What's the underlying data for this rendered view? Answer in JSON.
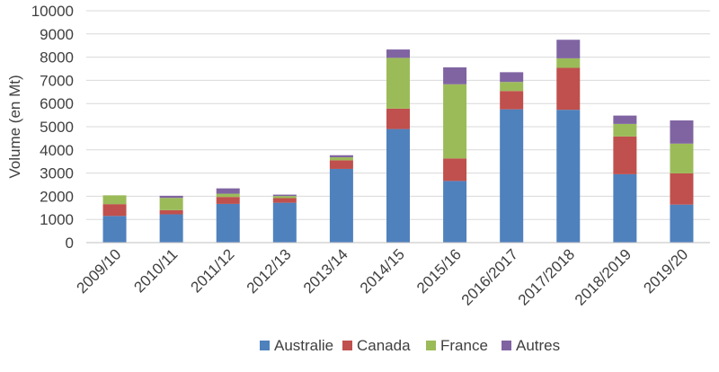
{
  "chart_data": {
    "type": "bar",
    "stacked": true,
    "title": "",
    "xlabel": "",
    "ylabel": "Volume (en Mt)",
    "ylim": [
      0,
      10000
    ],
    "yticks": [
      "0",
      "1000",
      "2000",
      "3000",
      "4000",
      "5000",
      "6000",
      "7000",
      "8000",
      "9000",
      "10000"
    ],
    "grid": true,
    "legend_position": "bottom",
    "categories": [
      "2009/10",
      "2010/11",
      "2011/12",
      "2012/13",
      "2013/14",
      "2014/15",
      "2015/16",
      "2016/2017",
      "2017/2018",
      "2018/2019",
      "2019/20"
    ],
    "series": [
      {
        "name": "Australie",
        "color": "#4F81BD",
        "values": [
          1150,
          1220,
          1670,
          1720,
          3180,
          4900,
          2660,
          5750,
          5730,
          2950,
          1640
        ]
      },
      {
        "name": "Canada",
        "color": "#C0504D",
        "values": [
          510,
          180,
          300,
          200,
          370,
          880,
          970,
          790,
          1810,
          1630,
          1350
        ]
      },
      {
        "name": "France",
        "color": "#9BBB59",
        "values": [
          380,
          530,
          140,
          90,
          130,
          2190,
          3200,
          390,
          410,
          540,
          1280
        ]
      },
      {
        "name": "Autres",
        "color": "#8064A2",
        "values": [
          0,
          90,
          230,
          60,
          90,
          360,
          730,
          420,
          800,
          360,
          1000
        ]
      }
    ]
  }
}
